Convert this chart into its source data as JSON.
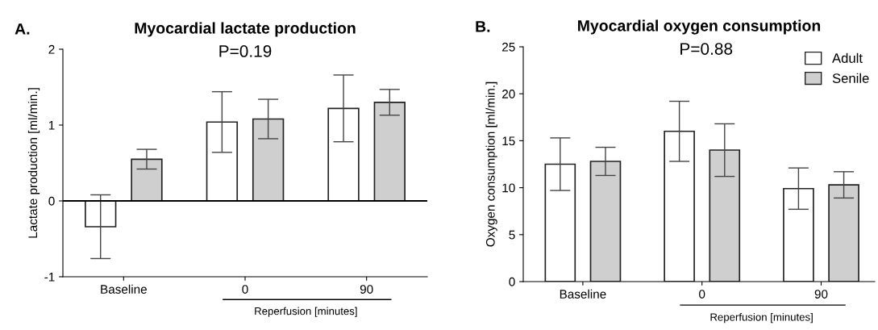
{
  "chart_data": [
    {
      "type": "bar",
      "title": "Myocardial lactate production",
      "ylabel": "Lactate production [ml/min.]",
      "categories": [
        "Baseline",
        "0",
        "90"
      ],
      "series": [
        {
          "color": "#ffffff",
          "values": [
            -0.34,
            1.04,
            1.22
          ],
          "errors": [
            0.42,
            0.4,
            0.44
          ]
        },
        {
          "color": "#cfcfcf",
          "values": [
            0.55,
            1.08,
            1.3
          ],
          "errors": [
            0.13,
            0.26,
            0.17
          ]
        }
      ],
      "ylim": [
        -1,
        2
      ],
      "yticks": [
        -1,
        0,
        1,
        2
      ],
      "grid": false,
      "legend": false,
      "ref_lines": [
        {
          "axis": "y",
          "value": 0,
          "color": "#000000"
        }
      ],
      "annotations": [
        "A.",
        "P=0.19",
        "Reperfusion [minutes]"
      ]
    },
    {
      "type": "bar",
      "title": "Myocardial oxygen consumption",
      "ylabel": "Oxygen consumption [ml/min.]",
      "categories": [
        "Baseline",
        "0",
        "90"
      ],
      "series": [
        {
          "name": "Adult",
          "color": "#ffffff",
          "values": [
            12.5,
            16.0,
            9.9
          ],
          "errors": [
            2.8,
            3.2,
            2.2
          ]
        },
        {
          "name": "Senile",
          "color": "#cfcfcf",
          "values": [
            12.8,
            14.0,
            10.3
          ],
          "errors": [
            1.5,
            2.8,
            1.4
          ]
        }
      ],
      "ylim": [
        0,
        25
      ],
      "yticks": [
        0,
        5,
        10,
        15,
        20,
        25
      ],
      "grid": false,
      "legend": "top right",
      "annotations": [
        "B.",
        "P=0.88",
        "Reperfusion [minutes]"
      ]
    }
  ]
}
